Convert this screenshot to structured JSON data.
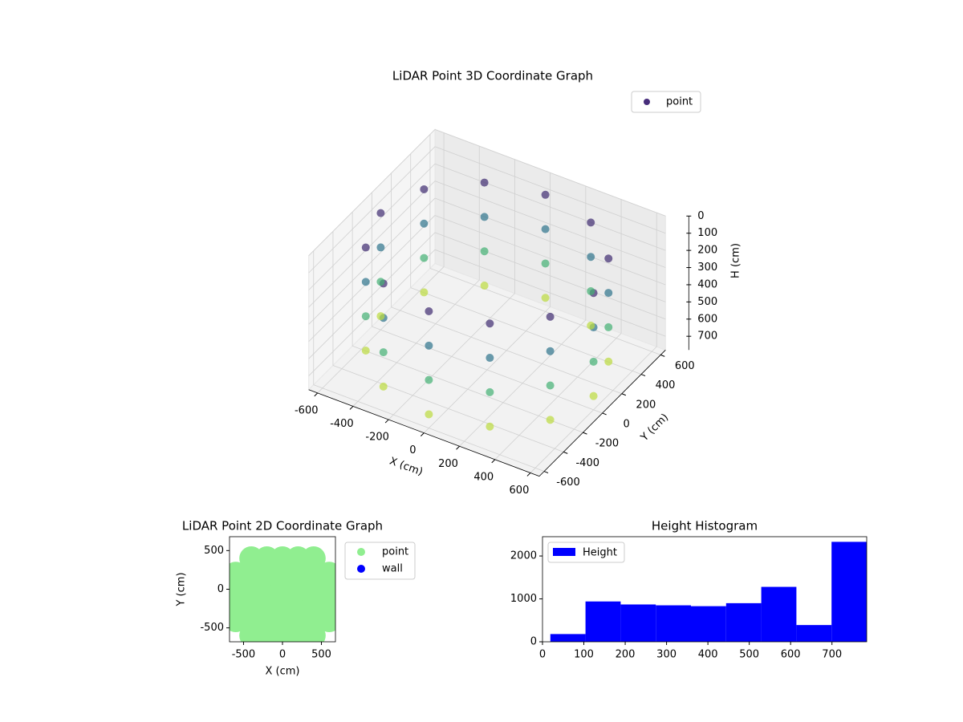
{
  "chart_data": [
    {
      "type": "scatter3d",
      "title": "LiDAR Point 3D Coordinate Graph",
      "xlabel": "X (cm)",
      "ylabel": "Y (cm)",
      "zlabel": "H (cm)",
      "xlim": [
        -650,
        650
      ],
      "ylim": [
        -650,
        650
      ],
      "zlim": [
        0,
        780
      ],
      "z_inverted": true,
      "xticks": [
        -600,
        -400,
        -200,
        0,
        200,
        400,
        600
      ],
      "yticks": [
        -600,
        -400,
        -200,
        0,
        200,
        400,
        600
      ],
      "zticks": [
        0,
        100,
        200,
        300,
        400,
        500,
        600,
        700
      ],
      "cmap": "viridis",
      "legend": "upper right",
      "grid": true,
      "series": [
        {
          "name": "point",
          "color": "#472d7b",
          "x": [
            600,
            520,
            300,
            0,
            -300,
            -520,
            -600,
            -520,
            -300,
            0,
            300,
            520,
            600,
            520,
            300,
            0,
            -300,
            -520,
            -600,
            -520,
            -300,
            0,
            300,
            520,
            600,
            520,
            300,
            0,
            -300,
            -520,
            -600,
            -520,
            -300,
            0,
            300,
            520,
            600,
            520,
            300,
            0,
            -300,
            -520,
            -600,
            -520,
            -300,
            0,
            300,
            520
          ],
          "y": [
            0,
            300,
            520,
            600,
            520,
            300,
            0,
            -300,
            -520,
            -600,
            -520,
            -300,
            0,
            300,
            520,
            600,
            520,
            300,
            0,
            -300,
            -520,
            -600,
            -520,
            -300,
            0,
            300,
            520,
            600,
            520,
            300,
            0,
            -300,
            -520,
            -600,
            -520,
            -300,
            0,
            300,
            520,
            600,
            520,
            300,
            0,
            -300,
            -520,
            -600,
            -520,
            -300
          ],
          "z": [
            100,
            100,
            100,
            100,
            100,
            100,
            100,
            100,
            100,
            100,
            100,
            100,
            300,
            300,
            300,
            300,
            300,
            300,
            300,
            300,
            300,
            300,
            300,
            300,
            500,
            500,
            500,
            500,
            500,
            500,
            500,
            500,
            500,
            500,
            500,
            500,
            700,
            700,
            700,
            700,
            700,
            700,
            700,
            700,
            700,
            700,
            700,
            700
          ]
        }
      ]
    },
    {
      "type": "scatter",
      "title": "LiDAR Point 2D Coordinate Graph",
      "xlabel": "X (cm)",
      "ylabel": "Y (cm)",
      "xlim": [
        -680,
        680
      ],
      "ylim": [
        -680,
        680
      ],
      "xticks": [
        -500,
        0,
        500
      ],
      "yticks": [
        -500,
        0,
        500
      ],
      "legend": "outside upper right",
      "series": [
        {
          "name": "point",
          "color": "#90ee90",
          "x": [
            -400,
            -200,
            0,
            200,
            400,
            -600,
            -400,
            -200,
            0,
            200,
            400,
            600,
            -600,
            -400,
            -200,
            0,
            200,
            400,
            600,
            -600,
            -400,
            -200,
            0,
            200,
            400,
            600,
            -600,
            -400,
            -200,
            0,
            200,
            400,
            600,
            -400,
            -200,
            0,
            200,
            400
          ],
          "y": [
            -600,
            -600,
            -600,
            -600,
            -600,
            -400,
            -400,
            -400,
            -400,
            -400,
            -400,
            -400,
            -200,
            -200,
            -200,
            -200,
            -200,
            -200,
            -200,
            0,
            0,
            0,
            0,
            0,
            0,
            0,
            200,
            200,
            200,
            200,
            200,
            200,
            200,
            400,
            400,
            400,
            400,
            400
          ]
        },
        {
          "name": "wall",
          "color": "#0000ff",
          "x": [],
          "y": []
        }
      ]
    },
    {
      "type": "histogram",
      "title": "Height Histogram",
      "bins": [
        19,
        104,
        189,
        274,
        359,
        444,
        529,
        614,
        699,
        784
      ],
      "values": [
        180,
        940,
        870,
        850,
        830,
        900,
        1280,
        390,
        2330
      ],
      "series_name": "Height",
      "color": "#0000ff",
      "xlim": [
        0,
        784
      ],
      "ylim": [
        0,
        2450
      ],
      "xticks": [
        0,
        100,
        200,
        300,
        400,
        500,
        600,
        700
      ],
      "yticks": [
        0,
        1000,
        2000
      ],
      "legend": "upper left"
    }
  ]
}
